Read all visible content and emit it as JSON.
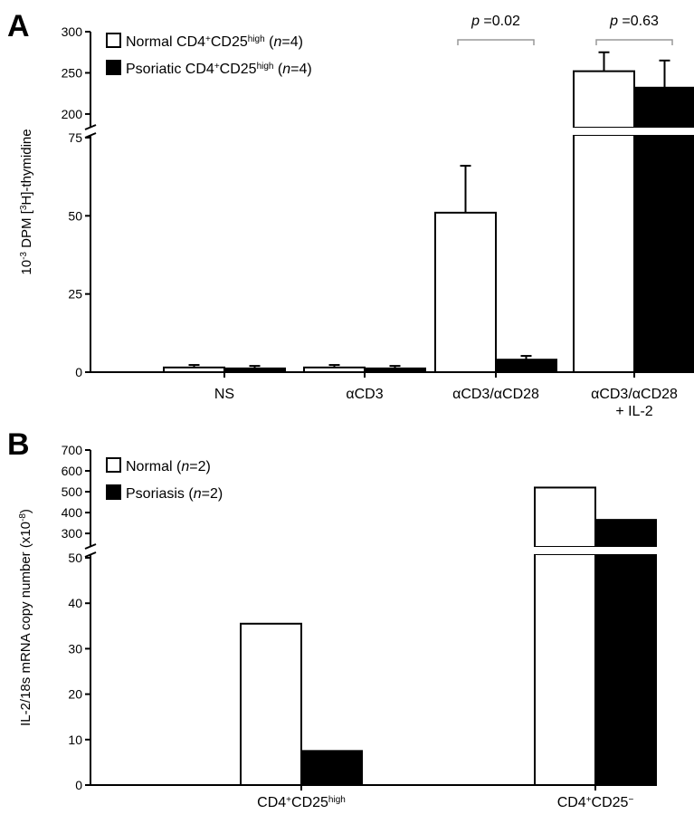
{
  "chart_data": [
    {
      "type": "bar",
      "panel_label": "A",
      "ylabel": "10-3 DPM [3H]-thymidine",
      "ylabel_parts": {
        "pre": "10",
        "sup1": "-3",
        "mid": " DPM  [",
        "sup2": "3",
        "post": "H]-thymidine"
      },
      "categories": [
        "NS",
        "αCD3",
        "αCD3/αCD28",
        "αCD3/αCD28 + IL-2"
      ],
      "category_lines": [
        [
          "NS"
        ],
        [
          "αCD3"
        ],
        [
          "αCD3/αCD28"
        ],
        [
          "αCD3/αCD28",
          "+ IL-2"
        ]
      ],
      "y_lower": {
        "range": [
          0,
          75
        ],
        "ticks": [
          "0",
          "25",
          "50",
          "75"
        ]
      },
      "y_upper": {
        "range": [
          190,
          300
        ],
        "ticks": [
          "200",
          "250",
          "300"
        ]
      },
      "axis_break": true,
      "series": [
        {
          "name": "Normal CD4+CD25high (n=4)",
          "legend_parts": {
            "a": "Normal CD4",
            "s1": "+",
            "b": "CD25",
            "s2": "high",
            "c": " (",
            "n": "n",
            "d": "=4)"
          },
          "fill": "#ffffff",
          "values": [
            1.5,
            1.5,
            51,
            252
          ],
          "errors": [
            0.8,
            0.8,
            15,
            23
          ]
        },
        {
          "name": "Psoriatic CD4+CD25high (n=4)",
          "legend_parts": {
            "a": "Psoriatic CD4",
            "s1": "+",
            "b": "CD25",
            "s2": "high",
            "c": " (",
            "n": "n",
            "d": "=4)"
          },
          "fill": "#000000",
          "values": [
            1.2,
            1.2,
            4,
            232
          ],
          "errors": [
            0.8,
            0.8,
            1.2,
            33
          ]
        }
      ],
      "annotations": [
        {
          "text": "p =0.02",
          "category_index": 2
        },
        {
          "text": "p =0.63",
          "category_index": 3
        }
      ],
      "legend_position": "top-left",
      "grid": false
    },
    {
      "type": "bar",
      "panel_label": "B",
      "ylabel": "IL-2/18s mRNA copy number (x10-8)",
      "ylabel_parts": {
        "pre": "IL-2/18s mRNA copy number (x10",
        "sup1": "-8",
        "post": ")"
      },
      "categories": [
        "CD4+CD25high",
        "CD4+CD25-"
      ],
      "category_parts": [
        {
          "a": "CD4",
          "s1": "+",
          "b": "CD25",
          "s2": "high"
        },
        {
          "a": "CD4",
          "s1": "+",
          "b": "CD25",
          "s2": "−"
        }
      ],
      "y_lower": {
        "range": [
          0,
          50
        ],
        "ticks": [
          "0",
          "10",
          "20",
          "30",
          "40",
          "50"
        ]
      },
      "y_upper": {
        "range": [
          270,
          700
        ],
        "ticks": [
          "300",
          "400",
          "500",
          "600",
          "700"
        ]
      },
      "axis_break": true,
      "series": [
        {
          "name": "Normal (n=2)",
          "legend_parts": {
            "a": "Normal (",
            "n": "n",
            "d": "=2)"
          },
          "fill": "#ffffff",
          "values": [
            35.5,
            520
          ]
        },
        {
          "name": "Psoriasis (n=2)",
          "legend_parts": {
            "a": "Psoriasis (",
            "n": "n",
            "d": "=2)"
          },
          "fill": "#000000",
          "values": [
            7.5,
            365
          ]
        }
      ],
      "legend_position": "top-left",
      "grid": false
    }
  ]
}
